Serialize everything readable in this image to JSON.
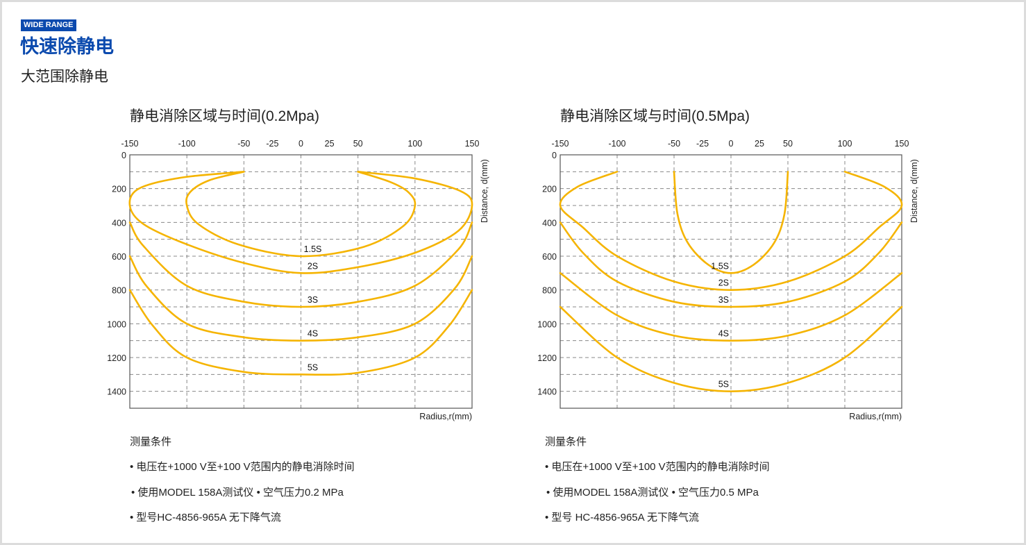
{
  "header": {
    "badge": "WIDE RANGE",
    "title": "快速除静电",
    "subtitle": "大范围除静电"
  },
  "colors": {
    "brand": "#0b4aae",
    "curve": "#f5b400",
    "grid": "#888888"
  },
  "notes": [
    {
      "heading": "测量条件",
      "items": [
        "• 电压在+1000 V至+100 V范围内的静电消除时间",
        "• 使用MODEL 158A测试仪 • 空气压力0.2 MPa",
        "• 型号HC-4856-965A 无下降气流"
      ]
    },
    {
      "heading": "测量条件",
      "items": [
        "• 电压在+1000 V至+100 V范围内的静电消除时间",
        "• 使用MODEL 158A测试仪 • 空气压力0.5 MPa",
        "• 型号 HC-4856-965A 无下降气流"
      ]
    }
  ],
  "chart_data": [
    {
      "type": "line",
      "title": "静电消除区域与时间(0.2Mpa)",
      "xlabel": "Radius,r(mm)",
      "ylabel": "Distance, d(mm)",
      "xlim": [
        -150,
        150
      ],
      "ylim": [
        0,
        1500
      ],
      "x_ticks": [
        -150,
        -100,
        -50,
        -25,
        0,
        25,
        50,
        100,
        150
      ],
      "y_ticks": [
        0,
        200,
        400,
        600,
        800,
        1000,
        1200,
        1400
      ],
      "grid": true,
      "series": [
        {
          "name": "1.5S",
          "points": [
            [
              -50,
              100
            ],
            [
              -80,
              150
            ],
            [
              -97,
              220
            ],
            [
              -100,
              300
            ],
            [
              -90,
              410
            ],
            [
              -55,
              530
            ],
            [
              0,
              600
            ],
            [
              55,
              545
            ],
            [
              90,
              420
            ],
            [
              100,
              300
            ],
            [
              94,
              220
            ],
            [
              78,
              160
            ],
            [
              50,
              100
            ]
          ]
        },
        {
          "name": "2S",
          "points": [
            [
              -50,
              100
            ],
            [
              -105,
              135
            ],
            [
              -142,
              200
            ],
            [
              -150,
              300
            ],
            [
              -138,
              410
            ],
            [
              -100,
              530
            ],
            [
              -50,
              640
            ],
            [
              0,
              700
            ],
            [
              50,
              665
            ],
            [
              100,
              580
            ],
            [
              138,
              450
            ],
            [
              150,
              300
            ],
            [
              140,
              215
            ],
            [
              100,
              140
            ],
            [
              50,
              100
            ]
          ]
        },
        {
          "name": "3S",
          "points": [
            [
              -150,
              400
            ],
            [
              -138,
              540
            ],
            [
              -100,
              775
            ],
            [
              -50,
              870
            ],
            [
              0,
              900
            ],
            [
              50,
              870
            ],
            [
              100,
              775
            ],
            [
              138,
              560
            ],
            [
              150,
              400
            ]
          ]
        },
        {
          "name": "4S",
          "points": [
            [
              -150,
              600
            ],
            [
              -135,
              780
            ],
            [
              -100,
              1000
            ],
            [
              -50,
              1080
            ],
            [
              0,
              1100
            ],
            [
              50,
              1080
            ],
            [
              100,
              1000
            ],
            [
              135,
              790
            ],
            [
              150,
              600
            ]
          ]
        },
        {
          "name": "5S",
          "points": [
            [
              -150,
              800
            ],
            [
              -130,
              1010
            ],
            [
              -100,
              1200
            ],
            [
              -50,
              1285
            ],
            [
              0,
              1300
            ],
            [
              50,
              1290
            ],
            [
              100,
              1200
            ],
            [
              130,
              1010
            ],
            [
              150,
              800
            ]
          ]
        }
      ]
    },
    {
      "type": "line",
      "title": "静电消除区域与时间(0.5Mpa)",
      "xlabel": "Radius,r(mm)",
      "ylabel": "Distance, d(mm)",
      "xlim": [
        -150,
        150
      ],
      "ylim": [
        0,
        1500
      ],
      "x_ticks": [
        -150,
        -100,
        -50,
        -25,
        0,
        25,
        50,
        100,
        150
      ],
      "y_ticks": [
        0,
        200,
        400,
        600,
        800,
        1000,
        1200,
        1400
      ],
      "grid": true,
      "series": [
        {
          "name": "1.5S",
          "points": [
            [
              -50,
              100
            ],
            [
              -47,
              350
            ],
            [
              -38,
              520
            ],
            [
              -20,
              650
            ],
            [
              0,
              700
            ],
            [
              20,
              650
            ],
            [
              38,
              520
            ],
            [
              47,
              350
            ],
            [
              50,
              100
            ]
          ]
        },
        {
          "name": "2S",
          "points": [
            [
              -100,
              100
            ],
            [
              -135,
              190
            ],
            [
              -150,
              300
            ],
            [
              -130,
              430
            ],
            [
              -100,
              600
            ],
            [
              -50,
              750
            ],
            [
              0,
              800
            ],
            [
              50,
              750
            ],
            [
              100,
              600
            ],
            [
              130,
              430
            ],
            [
              150,
              300
            ],
            [
              135,
              190
            ],
            [
              100,
              100
            ]
          ]
        },
        {
          "name": "3S",
          "points": [
            [
              -150,
              400
            ],
            [
              -130,
              580
            ],
            [
              -100,
              750
            ],
            [
              -50,
              870
            ],
            [
              0,
              900
            ],
            [
              50,
              870
            ],
            [
              100,
              750
            ],
            [
              130,
              580
            ],
            [
              150,
              400
            ]
          ]
        },
        {
          "name": "4S",
          "points": [
            [
              -150,
              700
            ],
            [
              -100,
              950
            ],
            [
              -50,
              1070
            ],
            [
              0,
              1100
            ],
            [
              50,
              1070
            ],
            [
              100,
              950
            ],
            [
              150,
              700
            ]
          ]
        },
        {
          "name": "5S",
          "points": [
            [
              -150,
              900
            ],
            [
              -100,
              1200
            ],
            [
              -50,
              1350
            ],
            [
              0,
              1400
            ],
            [
              50,
              1350
            ],
            [
              100,
              1200
            ],
            [
              150,
              900
            ]
          ]
        }
      ]
    }
  ]
}
